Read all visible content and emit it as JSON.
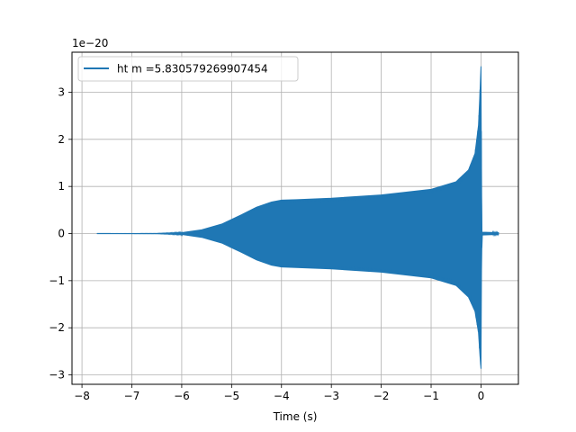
{
  "chart_data": {
    "type": "line",
    "title": "",
    "xlabel": "Time (s)",
    "ylabel": "",
    "y_offset_label": "1e−20",
    "xlim": [
      -8.2,
      0.75
    ],
    "ylim": [
      -3.2,
      3.85
    ],
    "xticks": [
      -8,
      -7,
      -6,
      -5,
      -4,
      -3,
      -2,
      -1,
      0
    ],
    "xtick_labels": [
      "−8",
      "−7",
      "−6",
      "−5",
      "−4",
      "−3",
      "−2",
      "−1",
      "0"
    ],
    "yticks": [
      -3,
      -2,
      -1,
      0,
      1,
      2,
      3
    ],
    "ytick_labels": [
      "−3",
      "−2",
      "−1",
      "0",
      "1",
      "2",
      "3"
    ],
    "grid": true,
    "legend_position": "upper-left",
    "color": "#1f77b4",
    "series": [
      {
        "name": "ht m =5.830579269907454",
        "upper_envelope": {
          "x": [
            -7.7,
            -6.5,
            -6.0,
            -5.6,
            -5.2,
            -4.8,
            -4.5,
            -4.2,
            -4.0,
            -3.7,
            -3.0,
            -2.0,
            -1.0,
            -0.5,
            -0.25,
            -0.12,
            -0.05,
            -0.02,
            0.0,
            0.01,
            0.02,
            0.35
          ],
          "y": [
            0.0,
            0.002,
            0.02,
            0.08,
            0.2,
            0.4,
            0.56,
            0.67,
            0.71,
            0.72,
            0.75,
            0.82,
            0.94,
            1.1,
            1.35,
            1.7,
            2.3,
            3.0,
            3.55,
            0.8,
            0.03,
            0.02
          ]
        },
        "lower_envelope": {
          "x": [
            -7.7,
            -6.5,
            -6.0,
            -5.6,
            -5.2,
            -4.8,
            -4.5,
            -4.2,
            -4.0,
            -3.7,
            -3.0,
            -2.0,
            -1.0,
            -0.5,
            -0.25,
            -0.12,
            -0.05,
            -0.02,
            0.0,
            0.01,
            0.02,
            0.35
          ],
          "y": [
            0.0,
            -0.002,
            -0.02,
            -0.08,
            -0.2,
            -0.4,
            -0.56,
            -0.67,
            -0.71,
            -0.72,
            -0.75,
            -0.82,
            -0.94,
            -1.1,
            -1.35,
            -1.65,
            -2.1,
            -2.6,
            -2.87,
            -0.8,
            -0.03,
            -0.02
          ]
        }
      }
    ]
  }
}
